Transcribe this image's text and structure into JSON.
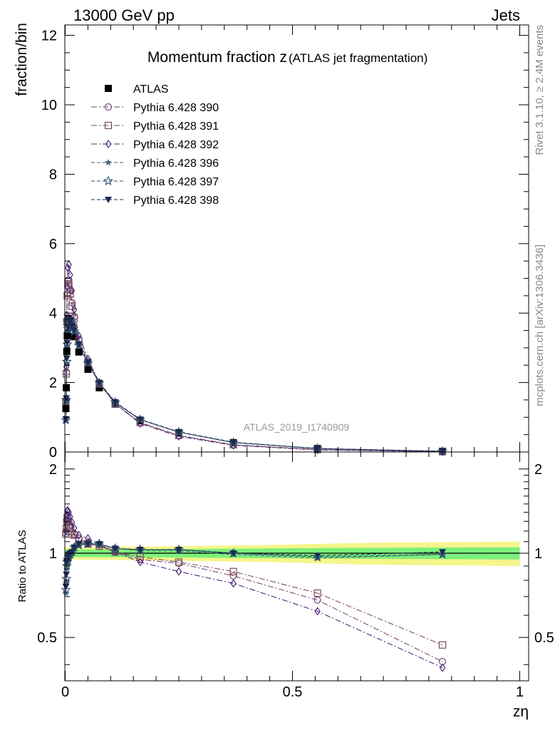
{
  "header": {
    "left": "13000 GeV pp",
    "right": "Jets"
  },
  "side_labels": {
    "rivet": "Rivet 3.1.10, ≥ 2.4M events",
    "source": "mcplots.cern.ch [arXiv:1306.3436]"
  },
  "chart_data": [
    {
      "type": "line",
      "title": "Momentum fraction z",
      "subtitle": "(ATLAS jet fragmentation)",
      "ylabel": "fraction/bin",
      "xlabel": "",
      "watermark": "ATLAS_2019_I1740909",
      "xlim": [
        0,
        1
      ],
      "ylim": [
        0,
        12.3
      ],
      "yticks": [
        0,
        2,
        4,
        6,
        8,
        10,
        12
      ],
      "ytick_labels": [
        "0",
        "2",
        "4",
        "6",
        "8",
        "10",
        "12"
      ],
      "legend_position": "top-left",
      "colors": {
        "ATLAS": "#000000",
        "Pythia 6.428 390": "#7a4a78",
        "Pythia 6.428 391": "#7a4d58",
        "Pythia 6.428 392": "#4a2a7c",
        "Pythia 6.428 396": "#3e6677",
        "Pythia 6.428 397": "#2e4f6e",
        "Pythia 6.428 398": "#1b2a52"
      },
      "x": [
        0.0015,
        0.0025,
        0.0035,
        0.0045,
        0.006,
        0.008,
        0.011,
        0.015,
        0.02,
        0.03,
        0.05,
        0.075,
        0.11,
        0.165,
        0.25,
        0.37,
        0.555,
        0.83
      ],
      "series": [
        {
          "name": "ATLAS",
          "marker": "square-filled",
          "values": [
            1.25,
            1.85,
            2.9,
            3.35,
            3.72,
            3.85,
            3.78,
            3.6,
            3.32,
            2.88,
            2.38,
            1.85,
            1.38,
            0.9,
            0.55,
            0.27,
            0.1,
            0.02
          ]
        },
        {
          "name": "Pythia 6.428 390",
          "marker": "circle-open",
          "values": [
            1.47,
            2.3,
            3.8,
            4.55,
            4.95,
            4.95,
            4.65,
            4.3,
            3.9,
            3.25,
            2.6,
            1.98,
            1.39,
            0.84,
            0.47,
            0.2,
            0.07,
            0.008
          ]
        },
        {
          "name": "Pythia 6.428 391",
          "marker": "square-open",
          "values": [
            1.46,
            2.25,
            3.75,
            4.5,
            4.85,
            4.8,
            4.55,
            4.2,
            3.85,
            3.2,
            2.58,
            1.96,
            1.39,
            0.85,
            0.48,
            0.21,
            0.07,
            0.009
          ]
        },
        {
          "name": "Pythia 6.428 392",
          "marker": "diamond-open",
          "values": [
            1.5,
            2.45,
            3.95,
            4.75,
            5.3,
            5.4,
            5.1,
            4.65,
            4.1,
            3.35,
            2.68,
            2.0,
            1.39,
            0.82,
            0.45,
            0.19,
            0.06,
            0.007
          ]
        },
        {
          "name": "Pythia 6.428 396",
          "marker": "star-filled",
          "values": [
            0.9,
            1.45,
            2.55,
            3.05,
            3.5,
            3.7,
            3.72,
            3.6,
            3.45,
            3.05,
            2.55,
            1.98,
            1.42,
            0.93,
            0.57,
            0.27,
            0.1,
            0.02
          ]
        },
        {
          "name": "Pythia 6.428 397",
          "marker": "star-open",
          "values": [
            0.92,
            1.5,
            2.6,
            3.1,
            3.55,
            3.75,
            3.75,
            3.62,
            3.47,
            3.07,
            2.56,
            1.99,
            1.43,
            0.93,
            0.57,
            0.27,
            0.1,
            0.02
          ]
        },
        {
          "name": "Pythia 6.428 398",
          "marker": "triangle-down-filled",
          "values": [
            0.95,
            1.55,
            2.7,
            3.15,
            3.6,
            3.8,
            3.78,
            3.65,
            3.5,
            3.1,
            2.58,
            2.0,
            1.44,
            0.94,
            0.58,
            0.28,
            0.1,
            0.02
          ]
        }
      ]
    },
    {
      "type": "line",
      "ylabel": "Ratio to ATLAS",
      "xlabel": "zη",
      "xlim": [
        0,
        1
      ],
      "ylim": [
        0.35,
        2.3
      ],
      "yticks": [
        0.5,
        1,
        2
      ],
      "ytick_labels": [
        "0.5",
        "1",
        "2"
      ],
      "xticks": [
        0,
        0.5,
        1
      ],
      "xtick_labels": [
        "0",
        "0.5",
        "1"
      ],
      "reference_line": 1,
      "uncertainty_bands": {
        "colors": {
          "inner": "#7cf07c",
          "outer": "#f5f58a"
        },
        "x": [
          0,
          0.25,
          0.45,
          0.67,
          1.0
        ],
        "inner": [
          0.03,
          0.035,
          0.04,
          0.045,
          0.05
        ],
        "outer": [
          0.05,
          0.06,
          0.07,
          0.09,
          0.1
        ]
      },
      "x": [
        0.0015,
        0.0025,
        0.0035,
        0.0045,
        0.006,
        0.008,
        0.011,
        0.015,
        0.02,
        0.03,
        0.05,
        0.075,
        0.11,
        0.165,
        0.25,
        0.37,
        0.555,
        0.83
      ],
      "series": [
        {
          "name": "Pythia 6.428 390",
          "values": [
            1.18,
            1.24,
            1.31,
            1.36,
            1.33,
            1.29,
            1.23,
            1.19,
            1.17,
            1.13,
            1.09,
            1.07,
            1.01,
            0.95,
            0.92,
            0.83,
            0.68,
            0.41
          ]
        },
        {
          "name": "Pythia 6.428 391",
          "values": [
            1.17,
            1.22,
            1.29,
            1.34,
            1.3,
            1.25,
            1.2,
            1.17,
            1.16,
            1.11,
            1.08,
            1.06,
            1.01,
            0.97,
            0.93,
            0.86,
            0.72,
            0.47
          ]
        },
        {
          "name": "Pythia 6.428 392",
          "values": [
            1.2,
            1.32,
            1.36,
            1.42,
            1.42,
            1.4,
            1.35,
            1.29,
            1.23,
            1.16,
            1.13,
            1.08,
            1.01,
            0.93,
            0.86,
            0.78,
            0.62,
            0.39
          ]
        },
        {
          "name": "Pythia 6.428 396",
          "values": [
            0.72,
            0.78,
            0.88,
            0.91,
            0.94,
            0.96,
            0.98,
            1.0,
            1.04,
            1.06,
            1.07,
            1.07,
            1.04,
            1.02,
            1.02,
            0.99,
            0.96,
            0.99
          ]
        },
        {
          "name": "Pythia 6.428 397",
          "values": [
            0.74,
            0.81,
            0.9,
            0.93,
            0.95,
            0.97,
            0.99,
            1.01,
            1.05,
            1.07,
            1.08,
            1.08,
            1.04,
            1.03,
            1.03,
            1.0,
            0.97,
            0.99
          ]
        },
        {
          "name": "Pythia 6.428 398",
          "values": [
            0.76,
            0.84,
            0.93,
            0.94,
            0.97,
            0.99,
            1.0,
            1.01,
            1.05,
            1.08,
            1.08,
            1.08,
            1.04,
            1.03,
            1.03,
            1.0,
            0.98,
            1.01
          ]
        }
      ]
    }
  ]
}
